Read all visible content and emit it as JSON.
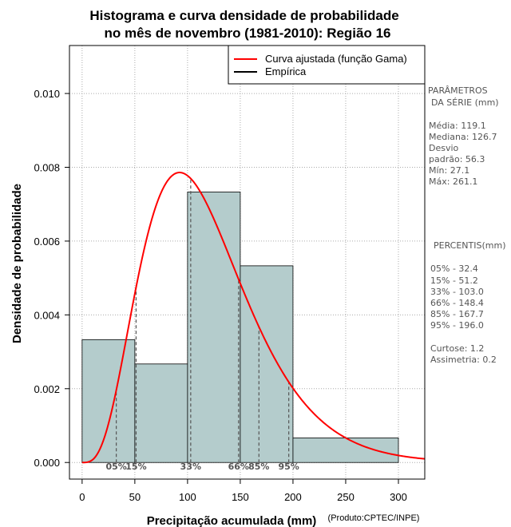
{
  "chart_data": {
    "type": "bar",
    "title_line1": "Histograma e curva densidade de probabilidade",
    "title_line2": "no mês de novembro (1981-2010): Região 16",
    "xlabel": "Precipitação acumulada (mm)",
    "ylabel": "Densidade de probabilidade",
    "credit": "(Produto:CPTEC/INPE)",
    "xlim": [
      -12,
      325
    ],
    "ylim": [
      -0.00045,
      0.0113
    ],
    "xticks": [
      0,
      50,
      100,
      150,
      200,
      250,
      300
    ],
    "yticks": [
      0.0,
      0.002,
      0.004,
      0.006,
      0.008,
      0.01
    ],
    "ytick_labels": [
      "0.000",
      "0.002",
      "0.004",
      "0.006",
      "0.008",
      "0.010"
    ],
    "bars": [
      {
        "x0": 0,
        "x1": 50,
        "value": 0.00333
      },
      {
        "x0": 50,
        "x1": 100,
        "value": 0.00267
      },
      {
        "x0": 100,
        "x1": 150,
        "value": 0.00733
      },
      {
        "x0": 150,
        "x1": 200,
        "value": 0.00533
      },
      {
        "x0": 200,
        "x1": 300,
        "value": 0.000667
      }
    ],
    "gamma_fit": {
      "shape": 4.48,
      "scale": 26.57,
      "x_max": 325
    },
    "percentile_markers": [
      {
        "label": "05%",
        "value": 32.4
      },
      {
        "label": "15%",
        "value": 51.2
      },
      {
        "label": "33%",
        "value": 103.0
      },
      {
        "label": "66%",
        "value": 148.4
      },
      {
        "label": "85%",
        "value": 167.7
      },
      {
        "label": "95%",
        "value": 196.0
      }
    ],
    "legend": [
      {
        "label": "Curva ajustada (função Gama)",
        "color": "#ff0000"
      },
      {
        "label": "Empírica",
        "color": "#000000"
      }
    ],
    "colors": {
      "bar_fill": "#b4cccc",
      "curve": "#ff0000",
      "grid": "#aaaaaa"
    }
  },
  "side_panel": {
    "params_title_1": "PARÂMETROS",
    "params_title_2": "DA SÉRIE (mm)",
    "params": [
      "Média:  119.1",
      "Mediana:  126.7",
      "Desvio",
      "padrão:  56.3",
      "Mín:  27.1",
      "Máx:  261.1"
    ],
    "percentis_title": "PERCENTIS(mm)",
    "percentis": [
      "05% -  32.4",
      "15% -  51.2",
      "33% -  103.0",
      "66% -  148.4",
      "85% -  167.7",
      "95% -  196.0"
    ],
    "stats": [
      "Curtose:  1.2",
      "Assimetria:  0.2"
    ]
  }
}
